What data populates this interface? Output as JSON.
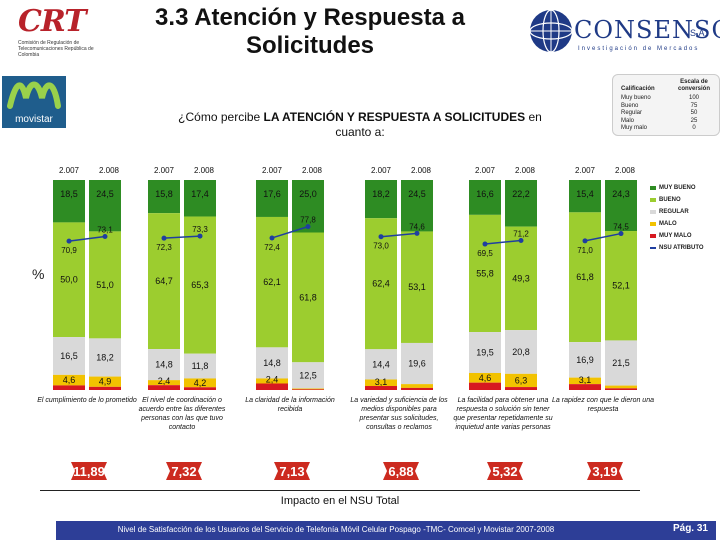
{
  "title_line1": "3.3 Atención y Respuesta a",
  "title_line2": "Solicitudes",
  "crt_logo_text": "CRT",
  "crt_logo_sub": "Comisión de Regulación de Telecomunicaciones República de Colombia",
  "consenso_name": "CONSENSO",
  "consenso_sa": "S.A.",
  "consenso_tagline": "Investigación de Mercados",
  "movistar_label": "movistar",
  "question_pre": "¿Cómo percibe ",
  "question_bold": "LA ATENCIÓN Y RESPUESTA A SOLICITUDES",
  "question_post": " en cuanto a:",
  "scale_table": {
    "header_left": "Calificación",
    "header_right": "Escala de conversión",
    "rows": [
      {
        "label": "Muy bueno",
        "value": "100"
      },
      {
        "label": "Bueno",
        "value": "75"
      },
      {
        "label": "Regular",
        "value": "50"
      },
      {
        "label": "Malo",
        "value": "25"
      },
      {
        "label": "Muy malo",
        "value": "0"
      }
    ]
  },
  "pct_label": "%",
  "colors": {
    "muy_bueno": "#2e8c23",
    "bueno": "#9ccd2f",
    "regular": "#d9d9d9",
    "malo": "#f2c200",
    "muy_malo": "#d71920",
    "nsu": "#1f3fa0",
    "badge": "#cc2a1f"
  },
  "chart_data": {
    "type": "bar",
    "stacked": true,
    "years": [
      "2.007",
      "2.008"
    ],
    "ylim": [
      0,
      100
    ],
    "legend": [
      "MUY BUENO",
      "BUENO",
      "REGULAR",
      "MALO",
      "MUY MALO",
      "NSU ATRIBUTO"
    ],
    "legend_position": "right",
    "groups": [
      {
        "category": "El cumplimiento de lo prometido",
        "bars": [
          {
            "year": "2.007",
            "muy_bueno": 18.5,
            "bueno": 50.0,
            "regular": 16.5,
            "malo": 4.6,
            "muy_malo": 2.0,
            "nsu": 70.9,
            "labels": {
              "muy_bueno": "18,5",
              "bueno": "50,0",
              "regular": "16,5",
              "malo": "4,6",
              "nsu": "70,9"
            }
          },
          {
            "year": "2.008",
            "muy_bueno": 24.5,
            "bueno": 51.0,
            "regular": 18.2,
            "malo": 4.9,
            "muy_malo": 1.5,
            "nsu": 73.1,
            "labels": {
              "muy_bueno": "24,5",
              "bueno": "51,0",
              "regular": "18,2",
              "malo": "4,9",
              "nsu": "73,1"
            }
          }
        ],
        "impact": "11,89"
      },
      {
        "category": "El nivel de coordinación o acuerdo entre las diferentes personas con las que tuvo contacto",
        "bars": [
          {
            "year": "2.007",
            "muy_bueno": 15.8,
            "bueno": 64.7,
            "regular": 14.8,
            "malo": 2.4,
            "muy_malo": 2.3,
            "nsu": 72.3,
            "labels": {
              "muy_bueno": "15,8",
              "bueno": "64,7",
              "regular": "14,8",
              "malo": "2,4",
              "nsu": "72,3"
            }
          },
          {
            "year": "2.008",
            "muy_bueno": 17.4,
            "bueno": 65.3,
            "regular": 11.8,
            "malo": 4.2,
            "muy_malo": 1.3,
            "nsu": 73.3,
            "labels": {
              "muy_bueno": "17,4",
              "bueno": "65,3",
              "regular": "11,8",
              "malo": "4,2",
              "nsu": "73,3"
            }
          }
        ],
        "impact": "7,32"
      },
      {
        "category": "La claridad de la información recibida",
        "bars": [
          {
            "year": "2.007",
            "muy_bueno": 17.6,
            "bueno": 62.1,
            "regular": 14.8,
            "malo": 2.4,
            "muy_malo": 3.1,
            "nsu": 72.4,
            "labels": {
              "muy_bueno": "17,6",
              "bueno": "62,1",
              "regular": "14,8",
              "malo": "2,4",
              "nsu": "72,4"
            }
          },
          {
            "year": "2.008",
            "muy_bueno": 25.0,
            "bueno": 61.8,
            "regular": 12.5,
            "malo": 0.4,
            "muy_malo": 0.3,
            "nsu": 77.8,
            "labels": {
              "muy_bueno": "25,0",
              "bueno": "61,8",
              "regular": "12,5",
              "nsu": "77,8"
            }
          }
        ],
        "impact": "7,13"
      },
      {
        "category": "La variedad y suficiencia de los medios disponibles para presentar sus solicitudes, consultas o reclamos",
        "bars": [
          {
            "year": "2.007",
            "muy_bueno": 18.2,
            "bueno": 62.4,
            "regular": 14.4,
            "malo": 3.1,
            "muy_malo": 1.9,
            "nsu": 73.0,
            "labels": {
              "muy_bueno": "18,2",
              "bueno": "62,4",
              "regular": "14,4",
              "malo": "3,1",
              "nsu": "73,0"
            }
          },
          {
            "year": "2.008",
            "muy_bueno": 24.5,
            "bueno": 53.1,
            "regular": 19.6,
            "malo": 1.8,
            "muy_malo": 1.0,
            "nsu": 74.6,
            "labels": {
              "muy_bueno": "24,5",
              "bueno": "53,1",
              "regular": "19,6",
              "nsu": "74,6"
            }
          }
        ],
        "impact": "6,88"
      },
      {
        "category": "La facilidad para obtener una respuesta o solución sin tener que presentar repetidamente su inquietud ante varias personas",
        "bars": [
          {
            "year": "2.007",
            "muy_bueno": 16.6,
            "bueno": 55.8,
            "regular": 19.5,
            "malo": 4.6,
            "muy_malo": 3.5,
            "nsu": 69.5,
            "labels": {
              "muy_bueno": "16,6",
              "bueno": "55,8",
              "regular": "19,5",
              "malo": "4,6",
              "nsu": "69,5"
            }
          },
          {
            "year": "2.008",
            "muy_bueno": 22.2,
            "bueno": 49.3,
            "regular": 20.8,
            "malo": 6.3,
            "muy_malo": 1.4,
            "nsu": 71.2,
            "labels": {
              "muy_bueno": "22,2",
              "bueno": "49,3",
              "regular": "20,8",
              "malo": "6,3",
              "nsu": "71,2"
            }
          }
        ],
        "impact": "5,32"
      },
      {
        "category": "La rapidez con que le dieron una respuesta",
        "bars": [
          {
            "year": "2.007",
            "muy_bueno": 15.4,
            "bueno": 61.8,
            "regular": 16.9,
            "malo": 3.1,
            "muy_malo": 2.8,
            "nsu": 71.0,
            "labels": {
              "muy_bueno": "15,4",
              "bueno": "61,8",
              "regular": "16,9",
              "malo": "3,1",
              "nsu": "71,0"
            }
          },
          {
            "year": "2.008",
            "muy_bueno": 24.3,
            "bueno": 52.1,
            "regular": 21.5,
            "malo": 1.3,
            "muy_malo": 0.8,
            "nsu": 74.5,
            "labels": {
              "muy_bueno": "24,3",
              "bueno": "52,1",
              "regular": "21,5",
              "nsu": "74,5"
            }
          }
        ],
        "impact": "3,19"
      }
    ]
  },
  "impact_title": "Impacto en el NSU Total",
  "footer_text": "Nivel de Satisfacción de los Usuarios del Servicio de Telefonía Móvil Celular Pospago -TMC- Comcel y Movistar 2007-2008",
  "page_number": "Pág. 31"
}
